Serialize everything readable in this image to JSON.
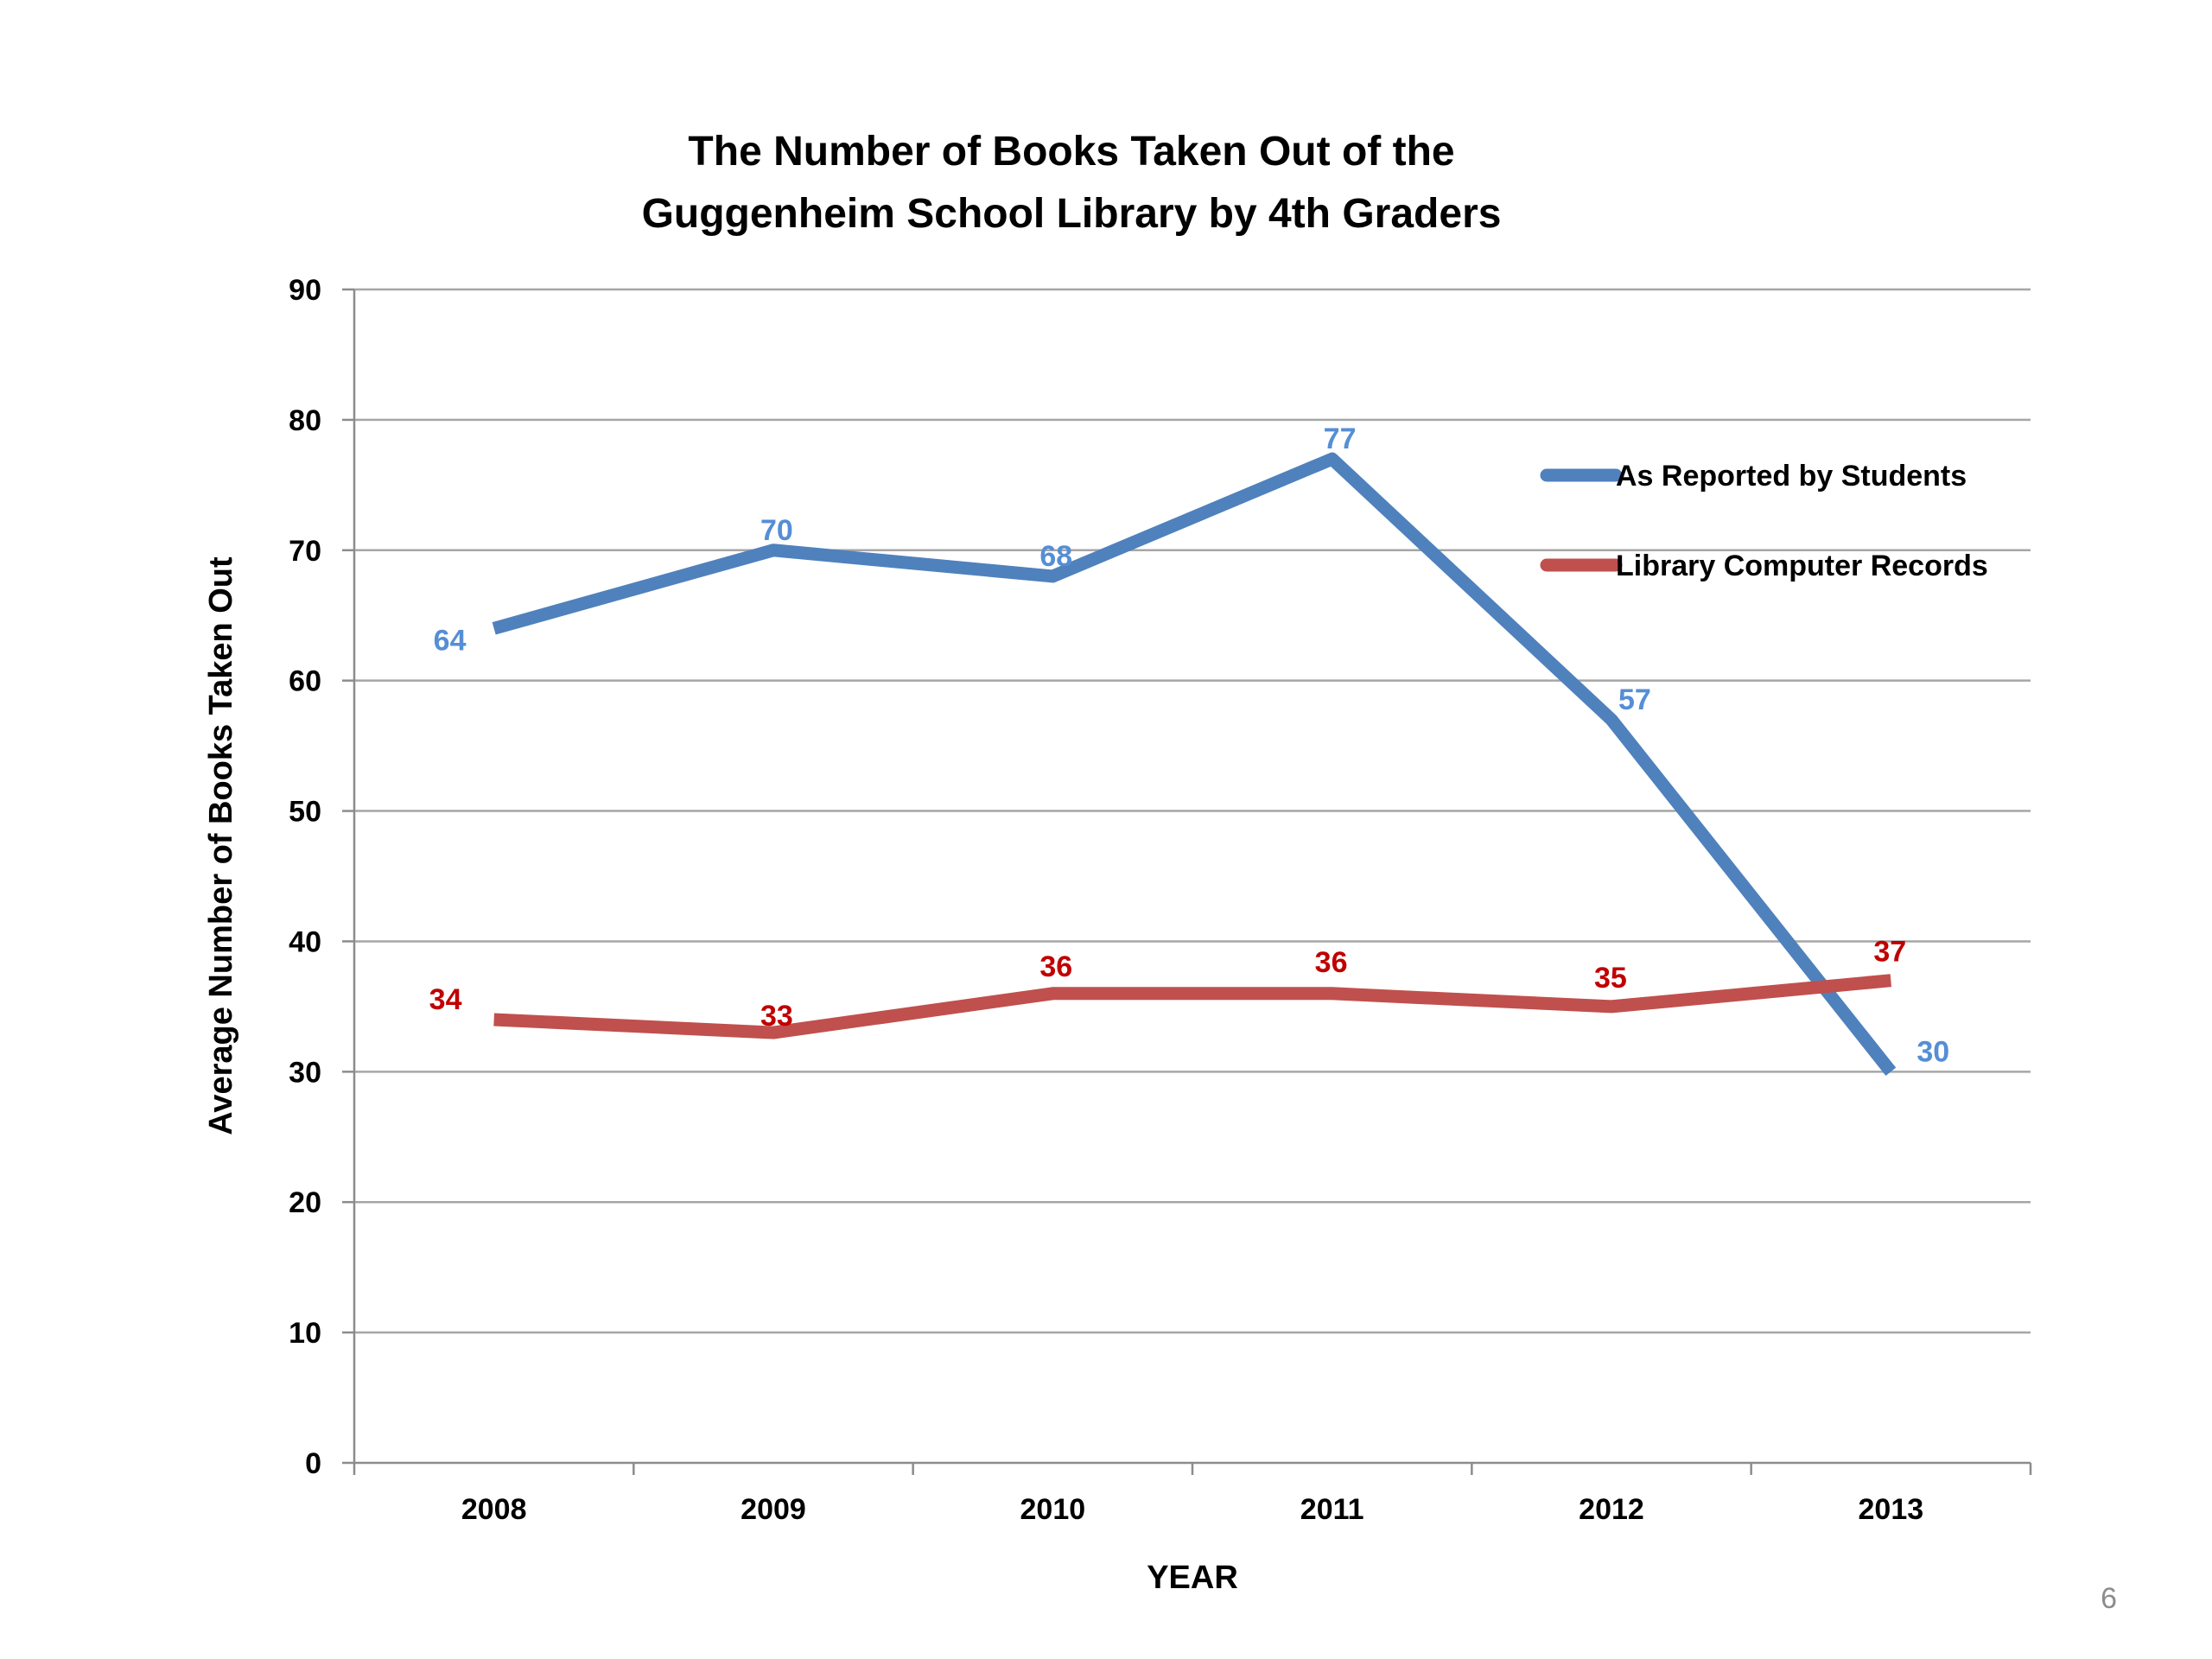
{
  "chart_data": {
    "type": "line",
    "title_lines": [
      "The Number of Books Taken Out of the",
      "Guggenheim School Library by 4th Graders"
    ],
    "xlabel": "YEAR",
    "ylabel": "Average Number of Books Taken Out",
    "categories": [
      "2008",
      "2009",
      "2010",
      "2011",
      "2012",
      "2013"
    ],
    "ylim": [
      0,
      90
    ],
    "yticks": [
      0,
      10,
      20,
      30,
      40,
      50,
      60,
      70,
      80,
      90
    ],
    "grid": true,
    "legend_position": "top-right",
    "series": [
      {
        "name": "As Reported by Students",
        "values": [
          64,
          70,
          68,
          77,
          57,
          30
        ],
        "color": "#4F81BD"
      },
      {
        "name": "Library Computer Records",
        "values": [
          34,
          33,
          36,
          36,
          35,
          37
        ],
        "color": "#C0504D"
      }
    ]
  },
  "slide_number": "6"
}
